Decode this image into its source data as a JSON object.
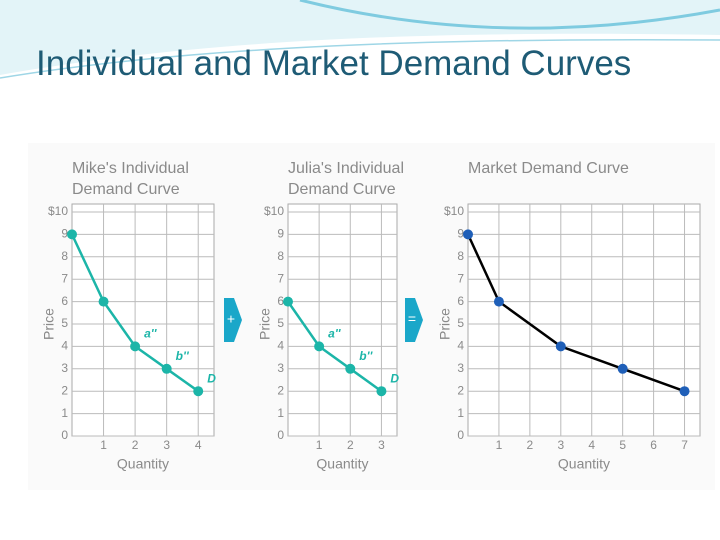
{
  "slide": {
    "title": "Individual and Market Demand Curves"
  },
  "operators": [
    "+",
    "="
  ],
  "chart_data": [
    {
      "type": "line",
      "title": "Mike's Individual Demand Curve",
      "xlabel": "Quantity",
      "ylabel": "Price",
      "x": [
        0,
        1,
        2,
        3,
        4
      ],
      "values": [
        9,
        6,
        4,
        3,
        2
      ],
      "color": "#1cb5a8",
      "marker_color": "#1cb5a8",
      "xlim": [
        0,
        4.5
      ],
      "ylim": [
        0,
        10
      ],
      "xticks": [
        1,
        2,
        3,
        4
      ],
      "yticks": [
        0,
        1,
        2,
        3,
        4,
        5,
        6,
        7,
        8,
        9,
        {
          "value": 10,
          "label": "$10"
        }
      ],
      "grid": true,
      "annotations": [
        {
          "text": "a''",
          "x": 2,
          "y": 4
        },
        {
          "text": "b''",
          "x": 3,
          "y": 3
        },
        {
          "text": "D",
          "x": 4,
          "y": 2
        }
      ]
    },
    {
      "type": "line",
      "title": "Julia's Individual Demand Curve",
      "xlabel": "Quantity",
      "ylabel": "Price",
      "x": [
        0,
        1,
        2,
        3
      ],
      "values": [
        6,
        4,
        3,
        2
      ],
      "color": "#1cb5a8",
      "marker_color": "#1cb5a8",
      "xlim": [
        0,
        3.5
      ],
      "ylim": [
        0,
        10
      ],
      "xticks": [
        1,
        2,
        3
      ],
      "yticks": [
        0,
        1,
        2,
        3,
        4,
        5,
        6,
        7,
        8,
        9,
        {
          "value": 10,
          "label": "$10"
        }
      ],
      "grid": true,
      "annotations": [
        {
          "text": "a''",
          "x": 1,
          "y": 4
        },
        {
          "text": "b''",
          "x": 2,
          "y": 3
        },
        {
          "text": "D",
          "x": 3,
          "y": 2
        }
      ]
    },
    {
      "type": "line",
      "title": "Market Demand Curve",
      "xlabel": "Quantity",
      "ylabel": "Price",
      "x": [
        0,
        1,
        3,
        5,
        7
      ],
      "values": [
        9,
        6,
        4,
        3,
        2
      ],
      "color": "#000000",
      "marker_color": "#1f5fb8",
      "xlim": [
        0,
        7.5
      ],
      "ylim": [
        0,
        10
      ],
      "xticks": [
        1,
        2,
        3,
        4,
        5,
        6,
        7
      ],
      "yticks": [
        0,
        1,
        2,
        3,
        4,
        5,
        6,
        7,
        8,
        9,
        {
          "value": 10,
          "label": "$10"
        }
      ],
      "grid": true,
      "annotations": []
    }
  ]
}
